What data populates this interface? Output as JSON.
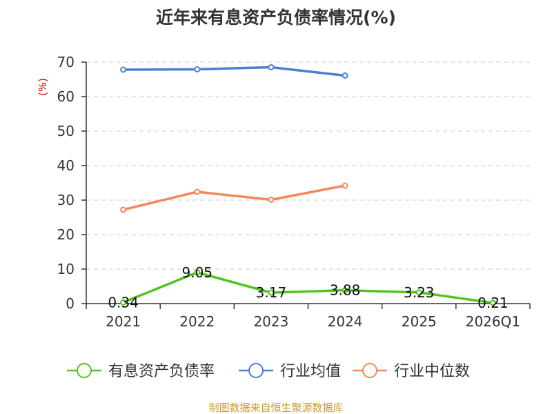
{
  "chart_data": {
    "type": "line",
    "title": "近年来有息资产负债率情况(%)",
    "ylabel": "(%)",
    "xlabel": "",
    "categories": [
      "2021",
      "2022",
      "2023",
      "2024",
      "2025",
      "2026Q1"
    ],
    "ylim": [
      0,
      70
    ],
    "yticks": [
      0,
      10,
      20,
      30,
      40,
      50,
      60,
      70
    ],
    "grid": true,
    "legend_position": "bottom",
    "series": [
      {
        "name": "有息资产负债率",
        "color": "#52c41a",
        "values": [
          0.34,
          9.05,
          3.17,
          3.88,
          3.23,
          0.21
        ],
        "labels": [
          "0.34",
          "9.05",
          "3.17",
          "3.88",
          "3.23",
          "0.21"
        ]
      },
      {
        "name": "行业均值",
        "color": "#4a7fd6",
        "values": [
          67.8,
          67.9,
          68.5,
          66.1,
          null,
          null
        ]
      },
      {
        "name": "行业中位数",
        "color": "#f4885a",
        "values": [
          27.2,
          32.4,
          30.1,
          34.2,
          null,
          null
        ]
      }
    ],
    "source": "制图数据来自恒生聚源数据库"
  }
}
